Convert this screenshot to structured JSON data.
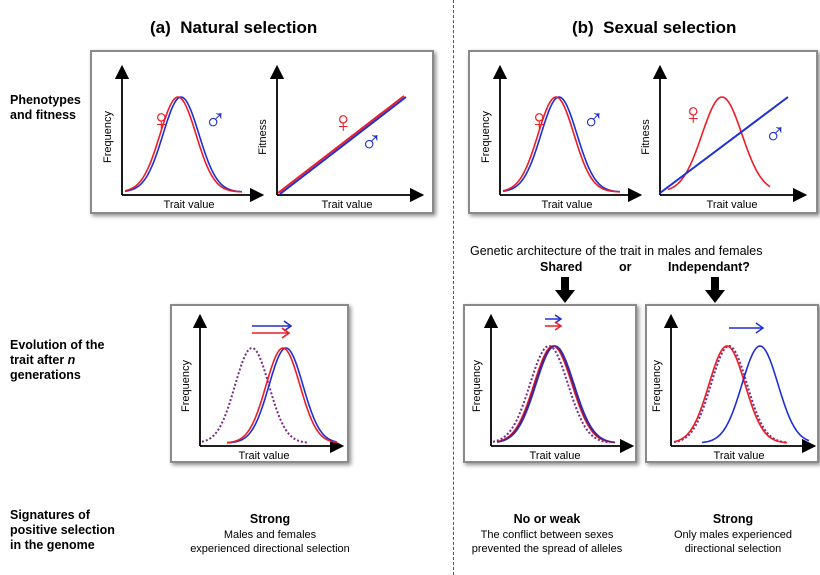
{
  "headings": {
    "a_letter": "(a)",
    "a_title": "Natural selection",
    "b_letter": "(b)",
    "b_title": "Sexual selection"
  },
  "row_labels": {
    "phenotypes": [
      "Phenotypes",
      "and fitness"
    ],
    "evolution_line1": "Evolution of the",
    "evolution_line2_pre": "trait after ",
    "evolution_line2_var": "n",
    "evolution_line3": "generations",
    "signatures": [
      "Signatures of",
      "positive selection",
      "in the genome"
    ]
  },
  "axes": {
    "frequency": "Frequency",
    "fitness": "Fitness",
    "trait_value": "Trait value"
  },
  "symbols": {
    "female": "♀",
    "male": "♂"
  },
  "genetic_architecture": {
    "question": "Genetic architecture of the trait in males and females",
    "option_shared": "Shared",
    "or": "or",
    "option_independent": "Independant?"
  },
  "signatures": {
    "a": {
      "strength": "Strong",
      "line1": "Males and females",
      "line2": "experienced directional selection"
    },
    "b_shared": {
      "strength": "No or weak",
      "line1": "The conflict between sexes",
      "line2": "prevented the spread of alleles"
    },
    "b_independent": {
      "strength": "Strong",
      "line1": "Only males experienced",
      "line2": "directional selection"
    }
  },
  "colors": {
    "female": "#ee1c25",
    "male": "#1f2fd6",
    "dotted": "#7a2a8a",
    "frame": "#8a8a8a"
  }
}
